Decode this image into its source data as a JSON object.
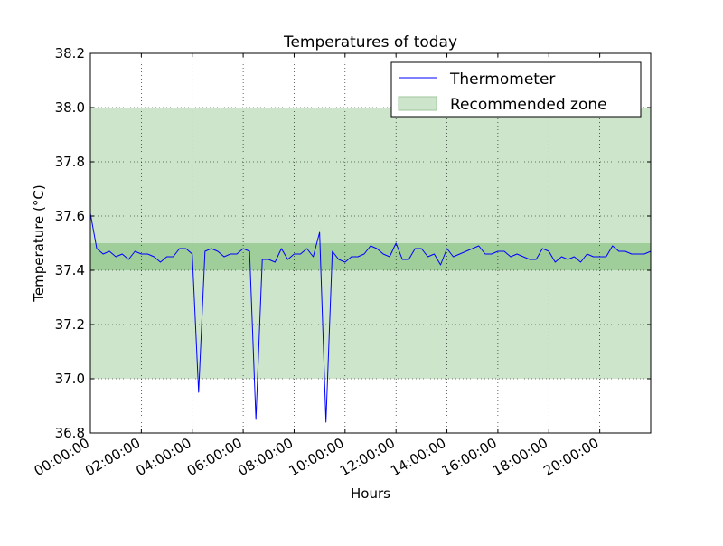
{
  "chart_data": {
    "type": "line",
    "title": "Temperatures of today",
    "xlabel": "Hours",
    "ylabel": "Temperature (°C)",
    "xlim": [
      0,
      22
    ],
    "ylim": [
      36.8,
      38.2
    ],
    "grid": true,
    "legend_placement": "top-right",
    "x_ticks": [
      0,
      2,
      4,
      6,
      8,
      10,
      12,
      14,
      16,
      18,
      20
    ],
    "x_tick_labels": [
      "00:00:00",
      "02:00:00",
      "04:00:00",
      "06:00:00",
      "08:00:00",
      "10:00:00",
      "12:00:00",
      "14:00:00",
      "16:00:00",
      "18:00:00",
      "20:00:00"
    ],
    "y_ticks": [
      36.8,
      37.0,
      37.2,
      37.4,
      37.6,
      37.8,
      38.0,
      38.2
    ],
    "y_tick_labels": [
      "36.8",
      "37.0",
      "37.2",
      "37.4",
      "37.6",
      "37.8",
      "38.0",
      "38.2"
    ],
    "zones": [
      {
        "name": "Recommended zone",
        "ymin": 37.0,
        "ymax": 38.0,
        "color": "#cde5cb"
      },
      {
        "name": "",
        "ymin": 37.4,
        "ymax": 37.5,
        "color": "#9fce9b"
      }
    ],
    "series": [
      {
        "name": "Thermometer",
        "color": "#0000ff",
        "x": [
          0.0,
          0.25,
          0.5,
          0.75,
          1.0,
          1.25,
          1.5,
          1.75,
          2.0,
          2.25,
          2.5,
          2.75,
          3.0,
          3.25,
          3.5,
          3.75,
          4.0,
          4.25,
          4.5,
          4.75,
          5.0,
          5.25,
          5.5,
          5.75,
          6.0,
          6.25,
          6.5,
          6.75,
          7.0,
          7.25,
          7.5,
          7.75,
          8.0,
          8.25,
          8.5,
          8.75,
          9.0,
          9.25,
          9.5,
          9.75,
          10.0,
          10.25,
          10.5,
          10.75,
          11.0,
          11.25,
          11.5,
          11.75,
          12.0,
          12.25,
          12.5,
          12.75,
          13.0,
          13.25,
          13.5,
          13.75,
          14.0,
          14.25,
          14.5,
          14.75,
          15.0,
          15.25,
          15.5,
          15.75,
          16.0,
          16.25,
          16.5,
          16.75,
          17.0,
          17.25,
          17.5,
          17.75,
          18.0,
          18.25,
          18.5,
          18.75,
          19.0,
          19.25,
          19.5,
          19.75,
          20.0,
          20.25,
          20.5,
          20.75,
          21.0,
          21.25,
          21.5,
          21.75,
          22.0
        ],
        "y": [
          37.61,
          37.48,
          37.46,
          37.47,
          37.45,
          37.46,
          37.44,
          37.47,
          37.46,
          37.46,
          37.45,
          37.43,
          37.45,
          37.45,
          37.48,
          37.48,
          37.46,
          36.95,
          37.47,
          37.48,
          37.47,
          37.45,
          37.46,
          37.46,
          37.48,
          37.47,
          36.85,
          37.44,
          37.44,
          37.43,
          37.48,
          37.44,
          37.46,
          37.46,
          37.48,
          37.45,
          37.54,
          36.84,
          37.47,
          37.44,
          37.43,
          37.45,
          37.45,
          37.46,
          37.49,
          37.48,
          37.46,
          37.45,
          37.5,
          37.44,
          37.44,
          37.48,
          37.48,
          37.45,
          37.46,
          37.42,
          37.48,
          37.45,
          37.46,
          37.47,
          37.48,
          37.49,
          37.46,
          37.46,
          37.47,
          37.47,
          37.45,
          37.46,
          37.45,
          37.44,
          37.44,
          37.48,
          37.47,
          37.43,
          37.45,
          37.44,
          37.45,
          37.43,
          37.46,
          37.45,
          37.45,
          37.45,
          37.49,
          37.47,
          37.47,
          37.46,
          37.46,
          37.46,
          37.47
        ]
      }
    ]
  }
}
